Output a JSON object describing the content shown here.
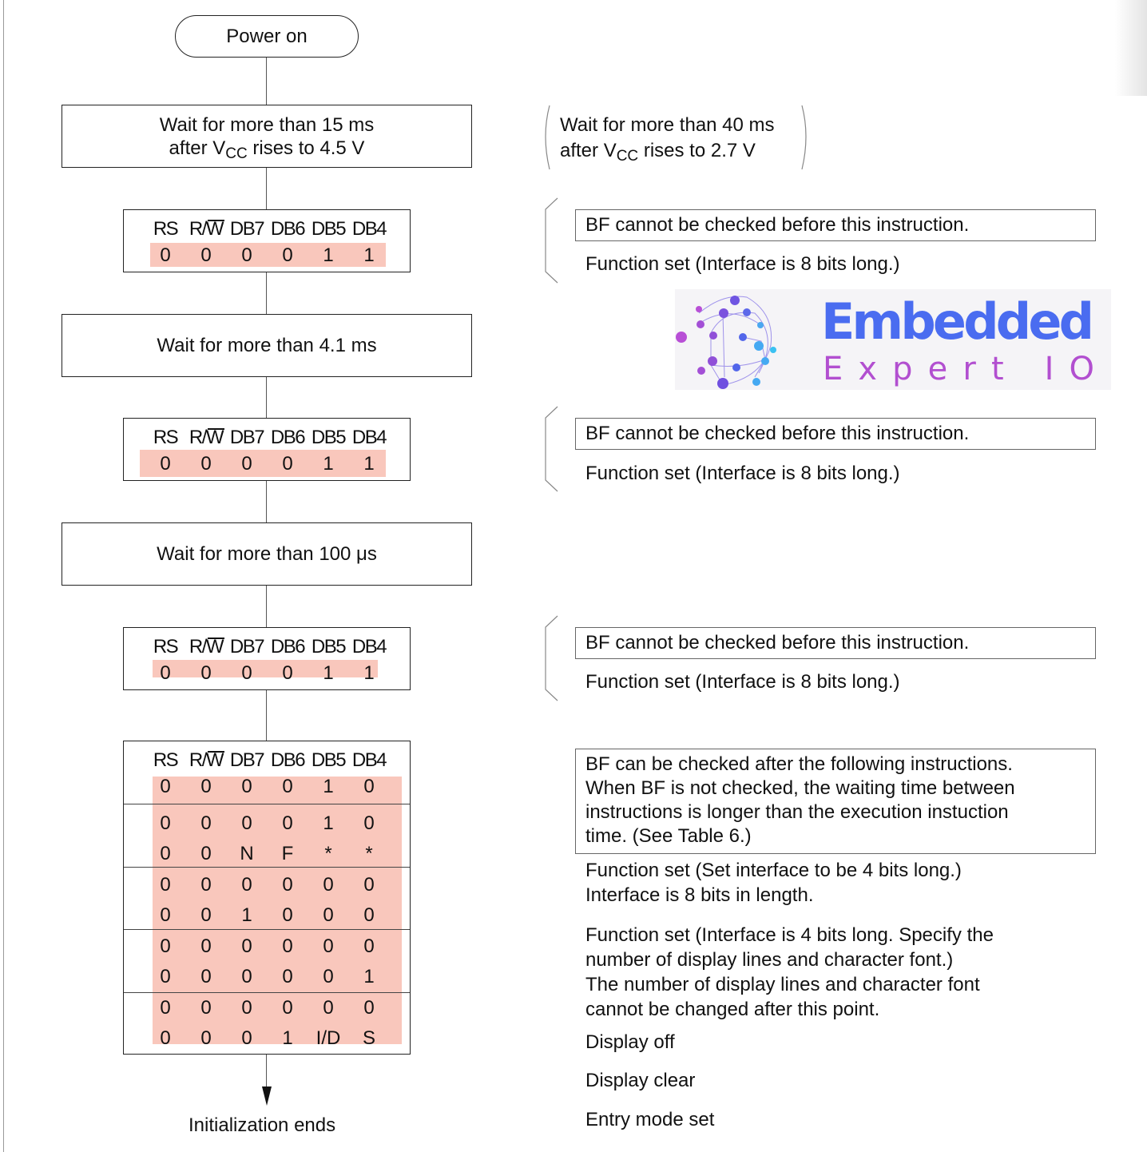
{
  "start": {
    "label": "Power on"
  },
  "end": {
    "label": "Initialization ends"
  },
  "waits": [
    {
      "line1": "Wait for more than 15 ms",
      "line2_pre": "after V",
      "line2_sub": "CC",
      "line2_post": " rises to 4.5 V"
    },
    {
      "line1": "Wait for more than 4.1 ms"
    },
    {
      "line1": "Wait for more than 100 μs"
    }
  ],
  "alt_wait": {
    "line1": "Wait for more than 40 ms",
    "line2_pre": "after V",
    "line2_sub": "CC",
    "line2_post": " rises to 2.7 V"
  },
  "register_headers": [
    "RS",
    "R/W",
    "DB7",
    "DB6",
    "DB5",
    "DB4"
  ],
  "registers": [
    {
      "rows": [
        [
          "0",
          "0",
          "0",
          "0",
          "1",
          "1"
        ]
      ]
    },
    {
      "rows": [
        [
          "0",
          "0",
          "0",
          "0",
          "1",
          "1"
        ]
      ]
    },
    {
      "rows": [
        [
          "0",
          "0",
          "0",
          "0",
          "1",
          "1"
        ]
      ]
    },
    {
      "rows": [
        [
          "0",
          "0",
          "0",
          "0",
          "1",
          "0"
        ],
        [
          "0",
          "0",
          "0",
          "0",
          "1",
          "0"
        ],
        [
          "0",
          "0",
          "N",
          "F",
          "*",
          "*"
        ],
        [
          "0",
          "0",
          "0",
          "0",
          "0",
          "0"
        ],
        [
          "0",
          "0",
          "1",
          "0",
          "0",
          "0"
        ],
        [
          "0",
          "0",
          "0",
          "0",
          "0",
          "0"
        ],
        [
          "0",
          "0",
          "0",
          "0",
          "0",
          "1"
        ],
        [
          "0",
          "0",
          "0",
          "0",
          "0",
          "0"
        ],
        [
          "0",
          "0",
          "0",
          "1",
          "I/D",
          "S"
        ]
      ]
    }
  ],
  "notes": {
    "bf_cannot": "BF cannot be checked before this instruction.",
    "function_set_8bit": "Function set  (Interface is 8 bits long.)",
    "bf_can": [
      "BF can be checked after the following instructions.",
      "When BF is not checked, the waiting time between",
      "instructions is longer than the execution instuction",
      "time.  (See Table 6.)"
    ],
    "fs_4bit": [
      "Function set  (Set interface to be 4 bits long.)",
      "Interface is 8 bits in length."
    ],
    "fs_lines": [
      "Function set  (Interface is 4 bits long.  Specify the",
      "number of display lines and character font.)",
      "The number of display lines and character font",
      "cannot be changed after this point."
    ],
    "display_off": "Display off",
    "display_clear": "Display clear",
    "entry_mode": "Entry mode set"
  },
  "logo": {
    "line1": "Embedded",
    "line2": "Expert IO",
    "colors": {
      "primary": "#4a6cf0",
      "secondary": "#b24fd0",
      "background": "#f5f4f7"
    }
  },
  "colors": {
    "highlight": "#f9c7bc",
    "line": "#222222"
  }
}
